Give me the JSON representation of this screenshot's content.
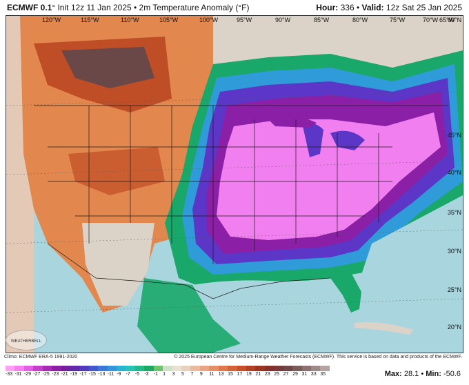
{
  "header": {
    "model_bold": "ECMWF 0.1",
    "model_rest": "° Init 12z 11 Jan 2025 • 2m Temperature Anomaly (°F)",
    "hour_label": "Hour:",
    "hour_value": "336",
    "valid_label": "Valid:",
    "valid_value": "12z Sat 25 Jan 2025"
  },
  "map": {
    "lon_labels": [
      "120°W",
      "115°W",
      "110°W",
      "105°W",
      "100°W",
      "95°W",
      "90°W",
      "85°W",
      "80°W",
      "75°W",
      "70°W",
      "65°W",
      "60°N"
    ],
    "lat_labels": [
      "45°N",
      "40°N",
      "35°N",
      "30°N",
      "25°N",
      "20°N"
    ],
    "logo_text": "WEATHERBELL",
    "colors": {
      "extreme_cold": "#f27ff0",
      "very_cold": "#8b1fa6",
      "cold": "#5c36c7",
      "cool": "#2f9bd8",
      "near_normal": "#1aa86a",
      "mild": "#dbd3c8",
      "warm": "#e2874e",
      "very_warm": "#b8431f",
      "hot": "#6b4848",
      "ocean_mild": "#a9d5de"
    }
  },
  "footer": {
    "climo": "Climo: ECMWF ERA-5 1991-2020",
    "credit": "© 2025 European Centre for Medium-Range Weather Forecasts (ECMWF). This service is based on data and products of the ECMWF."
  },
  "colorbar": {
    "ticks": [
      "-33",
      "-31",
      "-29",
      "-27",
      "-25",
      "-23",
      "-21",
      "-19",
      "-17",
      "-15",
      "-13",
      "-11",
      "-9",
      "-7",
      "-5",
      "-3",
      "-1",
      "1",
      "3",
      "5",
      "7",
      "9",
      "11",
      "13",
      "15",
      "17",
      "19",
      "21",
      "23",
      "25",
      "27",
      "29",
      "31",
      "33",
      "35"
    ],
    "colors": [
      "#ff9ff5",
      "#f57ef0",
      "#e45ee4",
      "#c63fcc",
      "#a52cb2",
      "#8b1fa6",
      "#74209c",
      "#5e2aa8",
      "#4f3bbd",
      "#4358cc",
      "#3c78d6",
      "#3496d9",
      "#2ab2d5",
      "#26c2b4",
      "#22b88a",
      "#1fa860",
      "#6ec46b",
      "#cfe0c8",
      "#e8e0d2",
      "#e6d1bd",
      "#e8bba0",
      "#e7a583",
      "#e48f66",
      "#de784c",
      "#d46238",
      "#c44f2a",
      "#b13f23",
      "#9b3420",
      "#86302a",
      "#763a3a",
      "#6e4747",
      "#7a5b5b",
      "#8b7070",
      "#9e8989",
      "#b3a3a3"
    ]
  },
  "stats": {
    "max_label": "Max:",
    "max_value": "28.1",
    "min_label": "Min:",
    "min_value": "-50.6"
  }
}
